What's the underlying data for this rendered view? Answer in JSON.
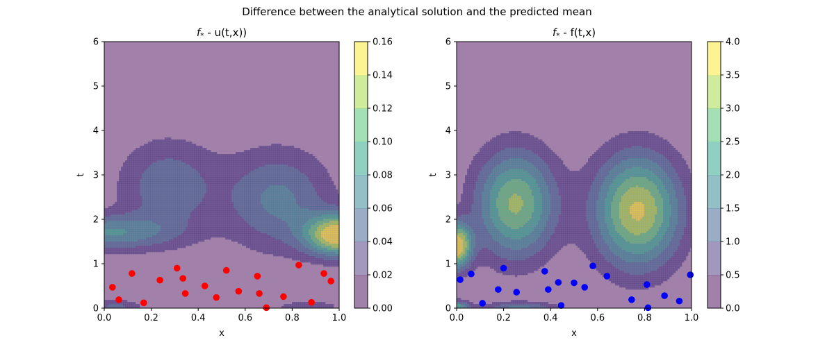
{
  "suptitle": "Difference between the analytical solution and the predicted mean",
  "chart_data": [
    {
      "type": "contour",
      "title": "f* - u(t,x))",
      "title_symbol": "f",
      "title_sub": "*",
      "title_rest": " - u(t,x))",
      "xlabel": "x",
      "ylabel": "t",
      "xlim": [
        0,
        1
      ],
      "ylim": [
        0,
        6
      ],
      "xticks": [
        "0.0",
        "0.2",
        "0.4",
        "0.6",
        "0.8",
        "1.0"
      ],
      "yticks": [
        "0",
        "1",
        "2",
        "3",
        "4",
        "5",
        "6"
      ],
      "colorbar": {
        "ticks": [
          "0.00",
          "0.02",
          "0.04",
          "0.06",
          "0.08",
          "0.10",
          "0.12",
          "0.14",
          "0.16"
        ],
        "levels": [
          0,
          0.02,
          0.04,
          0.06,
          0.08,
          0.1,
          0.12,
          0.14,
          0.16
        ]
      },
      "grid": false,
      "scatter_color": "#ff0000",
      "points": [
        [
          0.035,
          0.47
        ],
        [
          0.062,
          0.19
        ],
        [
          0.118,
          0.78
        ],
        [
          0.168,
          0.12
        ],
        [
          0.237,
          0.63
        ],
        [
          0.31,
          0.9
        ],
        [
          0.335,
          0.67
        ],
        [
          0.345,
          0.33
        ],
        [
          0.428,
          0.5
        ],
        [
          0.477,
          0.24
        ],
        [
          0.52,
          0.85
        ],
        [
          0.572,
          0.38
        ],
        [
          0.652,
          0.72
        ],
        [
          0.66,
          0.33
        ],
        [
          0.69,
          0.01
        ],
        [
          0.763,
          0.26
        ],
        [
          0.828,
          0.97
        ],
        [
          0.882,
          0.13
        ],
        [
          0.935,
          0.78
        ],
        [
          0.965,
          0.61
        ]
      ],
      "field_features": [
        {
          "x": 0.27,
          "t": 2.75,
          "peak": 0.055,
          "sx": 0.15,
          "st": 0.75
        },
        {
          "x": 0.74,
          "t": 2.45,
          "peak": 0.065,
          "sx": 0.16,
          "st": 0.8
        },
        {
          "x": 1.0,
          "t": 1.65,
          "peak": 0.16,
          "sx": 0.1,
          "st": 0.33
        },
        {
          "x": 0.0,
          "t": 1.7,
          "peak": 0.078,
          "sx": 0.2,
          "st": 0.28
        },
        {
          "x": 0.05,
          "t": 0.03,
          "peak": 0.045,
          "sx": 0.08,
          "st": 0.12
        },
        {
          "x": 0.87,
          "t": 0.03,
          "peak": 0.03,
          "sx": 0.12,
          "st": 0.12
        }
      ]
    },
    {
      "type": "contour",
      "title": "f* - f(t,x)",
      "title_symbol": "f",
      "title_sub": "*",
      "title_rest": " - f(t,x)",
      "xlabel": "x",
      "ylabel": "t",
      "xlim": [
        0,
        1
      ],
      "ylim": [
        0,
        6
      ],
      "xticks": [
        "0.0",
        "0.2",
        "0.4",
        "0.6",
        "0.8",
        "1.0"
      ],
      "yticks": [
        "0",
        "1",
        "2",
        "3",
        "4",
        "5",
        "6"
      ],
      "colorbar": {
        "ticks": [
          "0.0",
          "0.5",
          "1.0",
          "1.5",
          "2.0",
          "2.5",
          "3.0",
          "3.5",
          "4.0"
        ],
        "levels": [
          0,
          0.5,
          1.0,
          1.5,
          2.0,
          2.5,
          3.0,
          3.5,
          4.0
        ]
      },
      "grid": false,
      "scatter_color": "#0000ff",
      "points": [
        [
          0.015,
          0.64
        ],
        [
          0.062,
          0.77
        ],
        [
          0.11,
          0.11
        ],
        [
          0.177,
          0.42
        ],
        [
          0.2,
          0.9
        ],
        [
          0.255,
          0.36
        ],
        [
          0.375,
          0.83
        ],
        [
          0.39,
          0.42
        ],
        [
          0.433,
          0.58
        ],
        [
          0.445,
          0.06
        ],
        [
          0.5,
          0.57
        ],
        [
          0.545,
          0.47
        ],
        [
          0.58,
          0.95
        ],
        [
          0.64,
          0.72
        ],
        [
          0.745,
          0.19
        ],
        [
          0.81,
          0.53
        ],
        [
          0.815,
          0.01
        ],
        [
          0.885,
          0.28
        ],
        [
          0.948,
          0.16
        ],
        [
          0.995,
          0.75
        ]
      ],
      "field_features": [
        {
          "x": 0.25,
          "t": 2.35,
          "peak": 3.1,
          "sx": 0.12,
          "st": 0.85
        },
        {
          "x": 0.77,
          "t": 2.2,
          "peak": 3.6,
          "sx": 0.13,
          "st": 0.9
        },
        {
          "x": 0.0,
          "t": 1.4,
          "peak": 4.0,
          "sx": 0.045,
          "st": 0.35
        },
        {
          "x": 0.27,
          "t": 0.0,
          "peak": 1.6,
          "sx": 0.11,
          "st": 0.1
        },
        {
          "x": 0.0,
          "t": 0.0,
          "peak": 2.4,
          "sx": 0.04,
          "st": 0.12
        }
      ]
    }
  ]
}
